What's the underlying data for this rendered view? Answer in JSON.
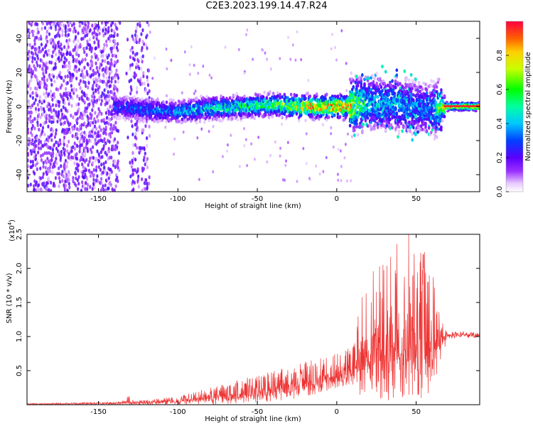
{
  "title": "C2E3.2023.199.14.47.R24",
  "chart_data": [
    {
      "type": "heatmap",
      "xlabel": "Height of straight line (km)",
      "ylabel": "Frequency (Hz)",
      "xlim": [
        -195,
        90
      ],
      "ylim": [
        -50,
        50
      ],
      "xticks": [
        -150,
        -100,
        -50,
        0,
        50
      ],
      "yticks": [
        -40,
        -20,
        0,
        20,
        40
      ],
      "colorbar": {
        "label": "Normalized spectral amplitude",
        "range": [
          0,
          1
        ],
        "ticks": [
          0.0,
          0.2,
          0.4,
          0.6,
          0.8
        ]
      },
      "ridge": {
        "x": [
          -140,
          -120,
          -100,
          -80,
          -60,
          -40,
          -20,
          -5,
          5,
          20,
          40,
          60,
          68,
          90
        ],
        "freq_center": [
          0,
          -2,
          -3,
          -1,
          0,
          1,
          0,
          0,
          0,
          2,
          1,
          -2,
          0,
          0
        ],
        "peak_amplitude": [
          0.3,
          0.35,
          0.4,
          0.5,
          0.55,
          0.6,
          0.85,
          0.9,
          0.95,
          0.45,
          0.4,
          0.35,
          0.85,
          0.95
        ]
      },
      "grid": false
    },
    {
      "type": "line",
      "xlabel": "Height of straight line (km)",
      "ylabel": "SNR (10 * v/v)",
      "scale_label": "(x10",
      "scale_exponent": "4",
      "scale_suffix": ")",
      "xlim": [
        -195,
        90
      ],
      "ylim": [
        0,
        2.5
      ],
      "xticks": [
        -150,
        -100,
        -50,
        0,
        50
      ],
      "yticks": [
        0.5,
        1.0,
        1.5,
        2.0,
        2.5
      ],
      "series": [
        {
          "color": "#ee3333",
          "envelope": {
            "x": [
              -195,
              -140,
              -131,
              -125,
              -100,
              -80,
              -60,
              -40,
              -20,
              0,
              10,
              15,
              20,
              30,
              40,
              50,
              55,
              60,
              65,
              70,
              90
            ],
            "mean": [
              0.01,
              0.02,
              0.05,
              0.03,
              0.05,
              0.1,
              0.15,
              0.22,
              0.3,
              0.4,
              0.5,
              0.75,
              0.8,
              0.85,
              0.9,
              0.85,
              0.8,
              0.75,
              0.95,
              1.02,
              1.02
            ],
            "max": [
              0.02,
              0.04,
              0.13,
              0.06,
              0.12,
              0.25,
              0.38,
              0.5,
              0.65,
              0.75,
              0.85,
              1.55,
              1.9,
              2.1,
              2.55,
              2.5,
              2.3,
              2.0,
              1.3,
              1.08,
              1.06
            ],
            "min": [
              0.0,
              0.0,
              0.0,
              0.0,
              0.0,
              0.0,
              0.02,
              0.05,
              0.1,
              0.25,
              0.3,
              0.1,
              0.1,
              0.05,
              0.1,
              0.08,
              0.1,
              0.2,
              0.6,
              0.97,
              0.98
            ]
          }
        }
      ],
      "grid": false
    }
  ]
}
